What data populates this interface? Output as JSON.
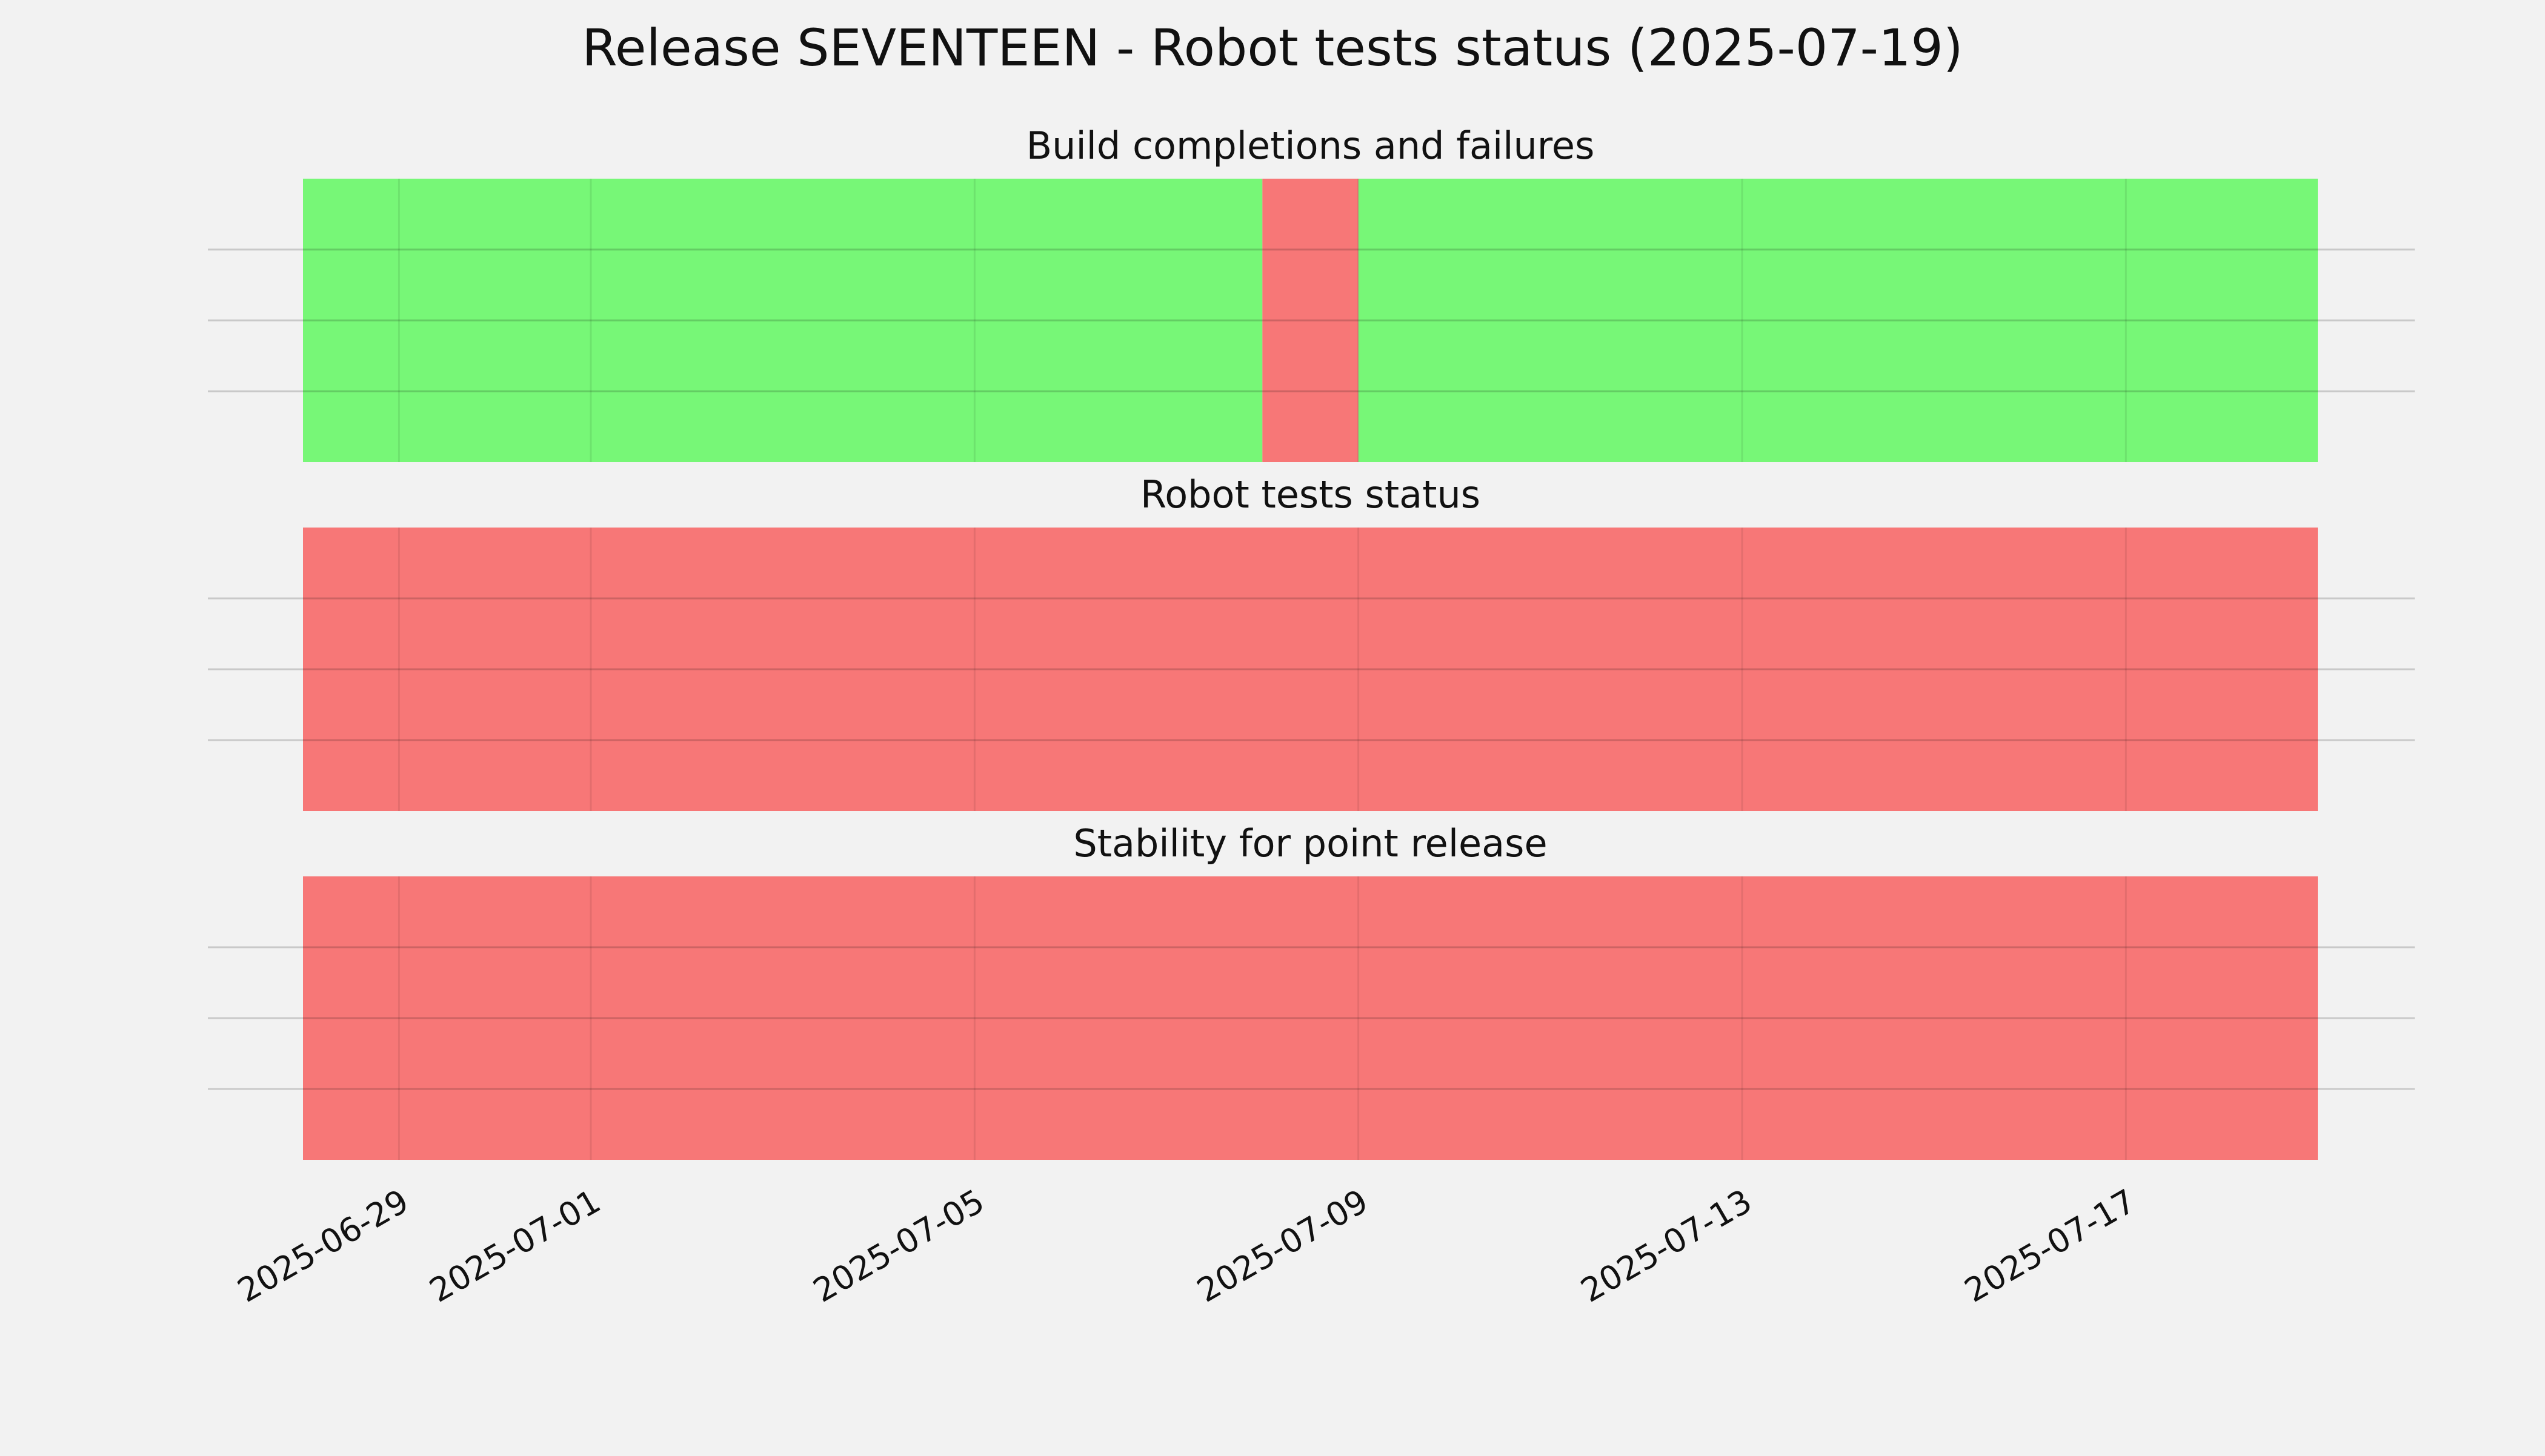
{
  "chart_data": {
    "type": "timeline",
    "title": "Release SEVENTEEN - Robot tests status (2025-07-19)",
    "x_range": [
      "2025-06-28",
      "2025-07-19"
    ],
    "x_ticks": [
      "2025-06-29",
      "2025-07-01",
      "2025-07-05",
      "2025-07-09",
      "2025-07-13",
      "2025-07-17"
    ],
    "grid": true,
    "colors": {
      "pass": "#77f777",
      "fail": "#f77777",
      "background": "#f2f2f2"
    },
    "panels": [
      {
        "title": "Build completions and failures",
        "segments": [
          {
            "start": "2025-06-28",
            "end": "2025-07-08",
            "status": "pass"
          },
          {
            "start": "2025-07-08",
            "end": "2025-07-09",
            "status": "fail"
          },
          {
            "start": "2025-07-09",
            "end": "2025-07-19",
            "status": "pass"
          }
        ]
      },
      {
        "title": "Robot tests status",
        "segments": [
          {
            "start": "2025-06-28",
            "end": "2025-07-19",
            "status": "fail"
          }
        ]
      },
      {
        "title": "Stability for point release",
        "segments": [
          {
            "start": "2025-06-28",
            "end": "2025-07-19",
            "status": "fail"
          }
        ]
      }
    ]
  }
}
